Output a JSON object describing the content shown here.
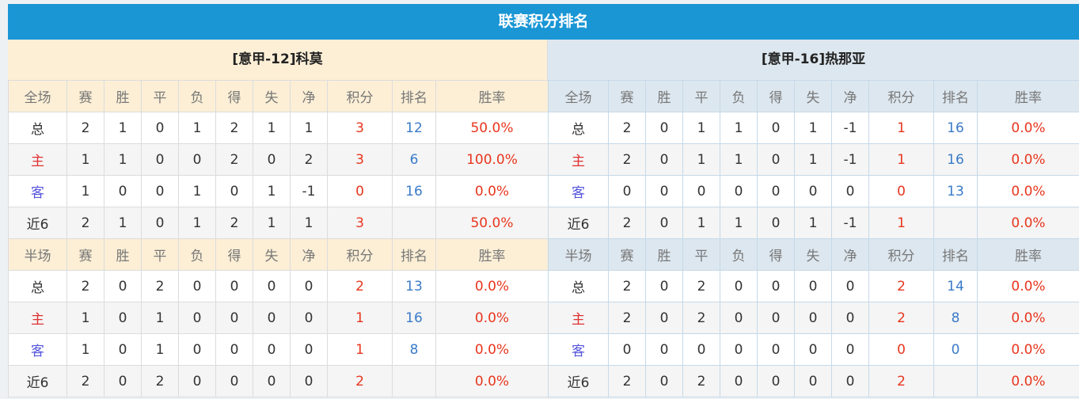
{
  "title": "联赛积分排名",
  "colors": {
    "header_bar": "#1a96d5",
    "points": "#e8361e",
    "rank": "#3a7bc8",
    "home": "#e03030",
    "away": "#5555dd"
  },
  "headers_full": [
    "全场",
    "赛",
    "胜",
    "平",
    "负",
    "得",
    "失",
    "净",
    "积分",
    "排名",
    "胜率"
  ],
  "headers_half": [
    "半场",
    "赛",
    "胜",
    "平",
    "负",
    "得",
    "失",
    "净",
    "积分",
    "排名",
    "胜率"
  ],
  "teams": [
    {
      "name": "[意甲-12]科莫",
      "full": [
        [
          "总",
          "2",
          "1",
          "0",
          "1",
          "2",
          "1",
          "1",
          "3",
          "12",
          "50.0%"
        ],
        [
          "主",
          "1",
          "1",
          "0",
          "0",
          "2",
          "0",
          "2",
          "3",
          "6",
          "100.0%"
        ],
        [
          "客",
          "1",
          "0",
          "0",
          "1",
          "0",
          "1",
          "-1",
          "0",
          "16",
          "0.0%"
        ],
        [
          "近6",
          "2",
          "1",
          "0",
          "1",
          "2",
          "1",
          "1",
          "3",
          "",
          "50.0%"
        ]
      ],
      "half": [
        [
          "总",
          "2",
          "0",
          "2",
          "0",
          "0",
          "0",
          "0",
          "2",
          "13",
          "0.0%"
        ],
        [
          "主",
          "1",
          "0",
          "1",
          "0",
          "0",
          "0",
          "0",
          "1",
          "16",
          "0.0%"
        ],
        [
          "客",
          "1",
          "0",
          "1",
          "0",
          "0",
          "0",
          "0",
          "1",
          "8",
          "0.0%"
        ],
        [
          "近6",
          "2",
          "0",
          "2",
          "0",
          "0",
          "0",
          "0",
          "2",
          "",
          "0.0%"
        ]
      ]
    },
    {
      "name": "[意甲-16]热那亚",
      "full": [
        [
          "总",
          "2",
          "0",
          "1",
          "1",
          "0",
          "1",
          "-1",
          "1",
          "16",
          "0.0%"
        ],
        [
          "主",
          "2",
          "0",
          "1",
          "1",
          "0",
          "1",
          "-1",
          "1",
          "16",
          "0.0%"
        ],
        [
          "客",
          "0",
          "0",
          "0",
          "0",
          "0",
          "0",
          "0",
          "0",
          "13",
          "0.0%"
        ],
        [
          "近6",
          "2",
          "0",
          "1",
          "1",
          "0",
          "1",
          "-1",
          "1",
          "",
          "0.0%"
        ]
      ],
      "half": [
        [
          "总",
          "2",
          "0",
          "2",
          "0",
          "0",
          "0",
          "0",
          "2",
          "14",
          "0.0%"
        ],
        [
          "主",
          "2",
          "0",
          "2",
          "0",
          "0",
          "0",
          "0",
          "2",
          "8",
          "0.0%"
        ],
        [
          "客",
          "0",
          "0",
          "0",
          "0",
          "0",
          "0",
          "0",
          "0",
          "0",
          "0.0%"
        ],
        [
          "近6",
          "2",
          "0",
          "2",
          "0",
          "0",
          "0",
          "0",
          "2",
          "",
          "0.0%"
        ]
      ]
    }
  ]
}
